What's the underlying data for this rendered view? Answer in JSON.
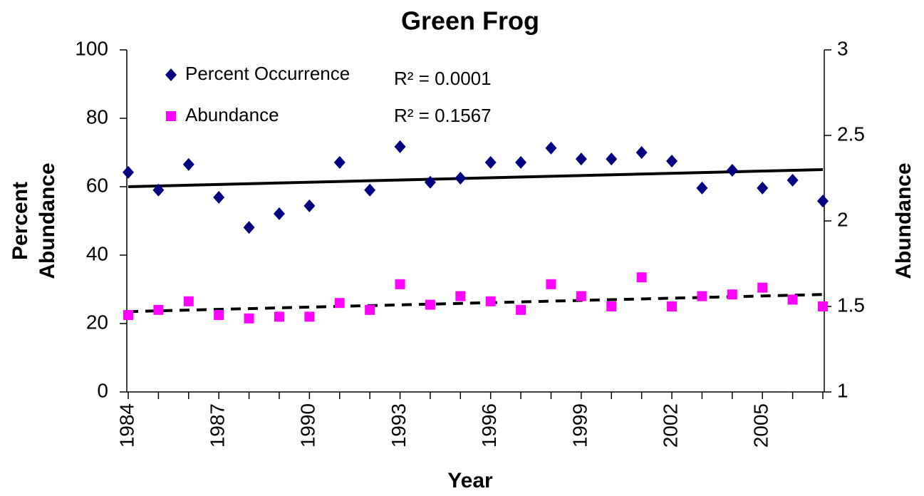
{
  "chart_data": {
    "type": "scatter",
    "title": "Green Frog",
    "xlabel": "Year",
    "ylabel": [
      "Percent",
      "Abundance"
    ],
    "y2label": "Abundance",
    "x": [
      1984,
      1985,
      1986,
      1987,
      1988,
      1989,
      1990,
      1991,
      1992,
      1993,
      1994,
      1995,
      1996,
      1997,
      1998,
      1999,
      2000,
      2001,
      2002,
      2003,
      2004,
      2005,
      2006,
      2007
    ],
    "series": [
      {
        "name": "Percent Occurrence",
        "color": "#000080",
        "marker": "diamond",
        "axis": "y",
        "values": [
          64.2,
          59,
          66.5,
          56.9,
          48.1,
          52.1,
          54.4,
          67.1,
          59,
          71.7,
          61.3,
          62.5,
          67.1,
          67.1,
          71.3,
          68.1,
          68.1,
          70,
          67.5,
          59.6,
          64.8,
          59.6,
          61.9,
          55.8
        ]
      },
      {
        "name": "Abundance",
        "color": "#ff00ff",
        "marker": "square",
        "axis": "y2",
        "values": [
          1.45,
          1.48,
          1.53,
          1.45,
          1.43,
          1.44,
          1.44,
          1.52,
          1.48,
          1.63,
          1.51,
          1.56,
          1.53,
          1.48,
          1.63,
          1.56,
          1.5,
          1.67,
          1.5,
          1.56,
          1.57,
          1.61,
          1.54,
          1.5
        ]
      }
    ],
    "trendlines": [
      {
        "x": [
          1984,
          2007
        ],
        "values": [
          60,
          65
        ],
        "axis": "y",
        "dashed": false,
        "color": "#000000"
      },
      {
        "x": [
          1984,
          2007
        ],
        "values": [
          1.47,
          1.57
        ],
        "axis": "y2",
        "dashed": true,
        "color": "#000000"
      }
    ],
    "annotations": [
      "R² = 0.0001",
      "R² = 0.1567"
    ],
    "xlim": [
      1984,
      2007
    ],
    "xticks": [
      1984,
      1987,
      1990,
      1993,
      1996,
      1999,
      2002,
      2005
    ],
    "ylim": [
      0,
      100
    ],
    "yticks": [
      0,
      20,
      40,
      60,
      80,
      100
    ],
    "y2lim": [
      1,
      3
    ],
    "y2ticks": [
      1,
      1.5,
      2,
      2.5,
      3
    ]
  }
}
